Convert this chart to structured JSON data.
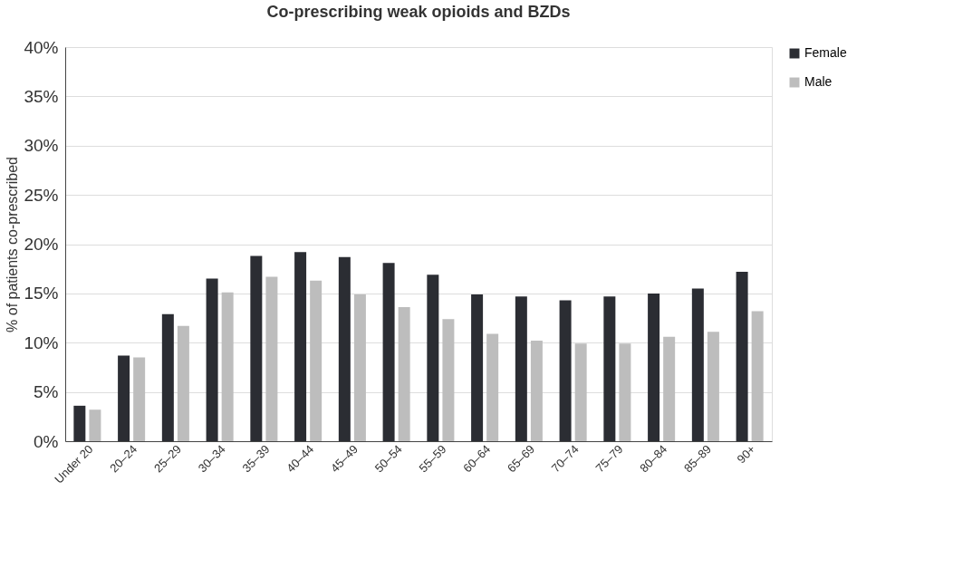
{
  "chart_data": {
    "type": "bar",
    "title": "Co-prescribing weak opioids and BZDs",
    "ylabel": "% of patients co-prescribed",
    "categories": [
      "Under 20",
      "20–24",
      "25–29",
      "30–34",
      "35–39",
      "40–44",
      "45–49",
      "50–54",
      "55–59",
      "60–64",
      "65–69",
      "70–74",
      "75–79",
      "80–84",
      "85–89",
      "90+"
    ],
    "series": [
      {
        "name": "Female",
        "color": "#2b2d33",
        "values": [
          3.6,
          8.7,
          12.9,
          16.5,
          18.8,
          19.2,
          18.7,
          18.1,
          16.9,
          14.9,
          14.7,
          14.3,
          14.7,
          15.0,
          15.5,
          17.2
        ]
      },
      {
        "name": "Male",
        "color": "#bdbdbd",
        "values": [
          3.2,
          8.5,
          11.7,
          15.1,
          16.7,
          16.3,
          14.9,
          13.6,
          12.4,
          10.9,
          10.2,
          9.9,
          9.9,
          10.6,
          11.1,
          13.2
        ]
      }
    ],
    "ylim": [
      0,
      40
    ],
    "yticks": [
      {
        "value": 0,
        "label": "0%"
      },
      {
        "value": 5,
        "label": "5%"
      },
      {
        "value": 10,
        "label": "10%"
      },
      {
        "value": 15,
        "label": "15%"
      },
      {
        "value": 20,
        "label": "20%"
      },
      {
        "value": 25,
        "label": "25%"
      },
      {
        "value": 30,
        "label": "30%"
      },
      {
        "value": 35,
        "label": "35%"
      },
      {
        "value": 40,
        "label": "40%"
      }
    ],
    "grid": "y",
    "legend": "right"
  }
}
